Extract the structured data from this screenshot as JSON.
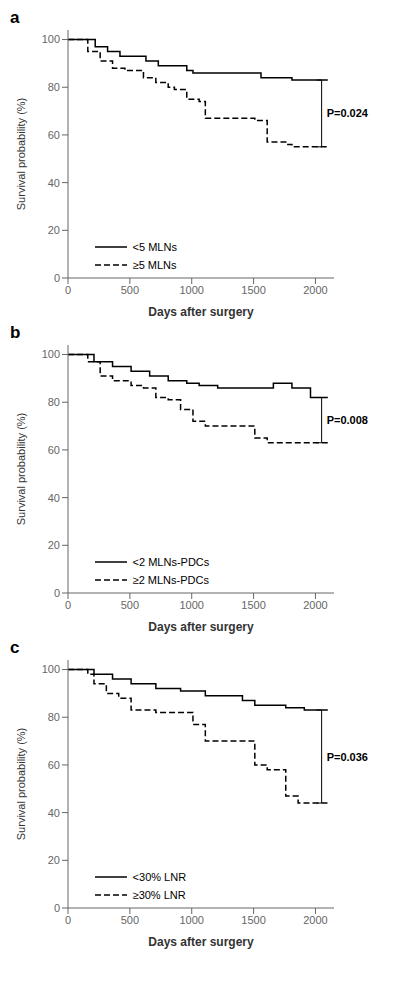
{
  "chart_data": [
    {
      "type": "step",
      "title": "a",
      "x_label": "Days after surgery",
      "y_label": "Survival probability (%)",
      "xlim": [
        0,
        2150
      ],
      "ylim": [
        0,
        104
      ],
      "xticks": [
        0,
        500,
        1000,
        1500,
        2000
      ],
      "yticks": [
        0,
        20,
        40,
        60,
        80,
        100
      ],
      "grid": false,
      "legend": "lower left",
      "series": [
        {
          "name": "<5 MLNs",
          "color": "#000000",
          "line_style": "solid",
          "x": [
            0,
            220,
            320,
            420,
            630,
            730,
            960,
            1010,
            1560,
            1810,
            2100
          ],
          "values": [
            100,
            97,
            95,
            93,
            91,
            89,
            87,
            86,
            84,
            83,
            83
          ]
        },
        {
          "name": "≥5 MLNs",
          "color": "#000000",
          "line_style": "dashed",
          "x": [
            0,
            160,
            260,
            360,
            460,
            610,
            710,
            810,
            860,
            960,
            1060,
            1110,
            1510,
            1610,
            1760,
            1810,
            2100
          ],
          "values": [
            100,
            95,
            91,
            88,
            87,
            84,
            82,
            80,
            79,
            75,
            74,
            67,
            66,
            57,
            56,
            55,
            55
          ]
        }
      ],
      "annotations": [
        {
          "text": "P=0.024",
          "x": 2050,
          "y_top": 83,
          "y_bottom": 55
        }
      ]
    },
    {
      "type": "step",
      "title": "b",
      "x_label": "Days after surgery",
      "y_label": "Survival probability (%)",
      "xlim": [
        0,
        2150
      ],
      "ylim": [
        0,
        104
      ],
      "xticks": [
        0,
        500,
        1000,
        1500,
        2000
      ],
      "yticks": [
        0,
        20,
        40,
        60,
        80,
        100
      ],
      "grid": false,
      "legend": "lower left",
      "series": [
        {
          "name": "<2 MLNs-PDCs",
          "color": "#000000",
          "line_style": "solid",
          "x": [
            0,
            210,
            360,
            510,
            660,
            810,
            960,
            1060,
            1210,
            1510,
            1660,
            1810,
            1960,
            2100
          ],
          "values": [
            100,
            97,
            95,
            93,
            91,
            89,
            88,
            87,
            86,
            86,
            88,
            86,
            82,
            82
          ]
        },
        {
          "name": "≥2 MLNs-PDCs",
          "color": "#000000",
          "line_style": "dashed",
          "x": [
            0,
            160,
            260,
            360,
            510,
            610,
            710,
            810,
            910,
            1010,
            1110,
            1510,
            1610,
            2100
          ],
          "values": [
            100,
            97,
            91,
            89,
            87,
            86,
            82,
            81,
            77,
            72,
            70,
            65,
            63,
            63
          ]
        }
      ],
      "annotations": [
        {
          "text": "P=0.008",
          "x": 2050,
          "y_top": 82,
          "y_bottom": 63
        }
      ]
    },
    {
      "type": "step",
      "title": "c",
      "x_label": "Days after surgery",
      "y_label": "Survival probability (%)",
      "xlim": [
        0,
        2150
      ],
      "ylim": [
        0,
        104
      ],
      "xticks": [
        0,
        500,
        1000,
        1500,
        2000
      ],
      "yticks": [
        0,
        20,
        40,
        60,
        80,
        100
      ],
      "grid": false,
      "legend": "lower left",
      "series": [
        {
          "name": "<30% LNR",
          "color": "#000000",
          "line_style": "solid",
          "x": [
            0,
            210,
            360,
            510,
            710,
            910,
            1110,
            1410,
            1510,
            1760,
            1910,
            2100
          ],
          "values": [
            100,
            98,
            96,
            94,
            92,
            91,
            89,
            87,
            85,
            84,
            83,
            83
          ]
        },
        {
          "name": "≥30% LNR",
          "color": "#000000",
          "line_style": "dashed",
          "x": [
            0,
            160,
            210,
            310,
            410,
            510,
            710,
            910,
            1010,
            1110,
            1510,
            1610,
            1760,
            1860,
            2100
          ],
          "values": [
            100,
            98,
            94,
            90,
            88,
            83,
            82,
            82,
            77,
            70,
            60,
            58,
            47,
            44,
            44
          ]
        }
      ],
      "annotations": [
        {
          "text": "P=0.036",
          "x": 2050,
          "y_top": 83,
          "y_bottom": 44
        }
      ]
    }
  ]
}
